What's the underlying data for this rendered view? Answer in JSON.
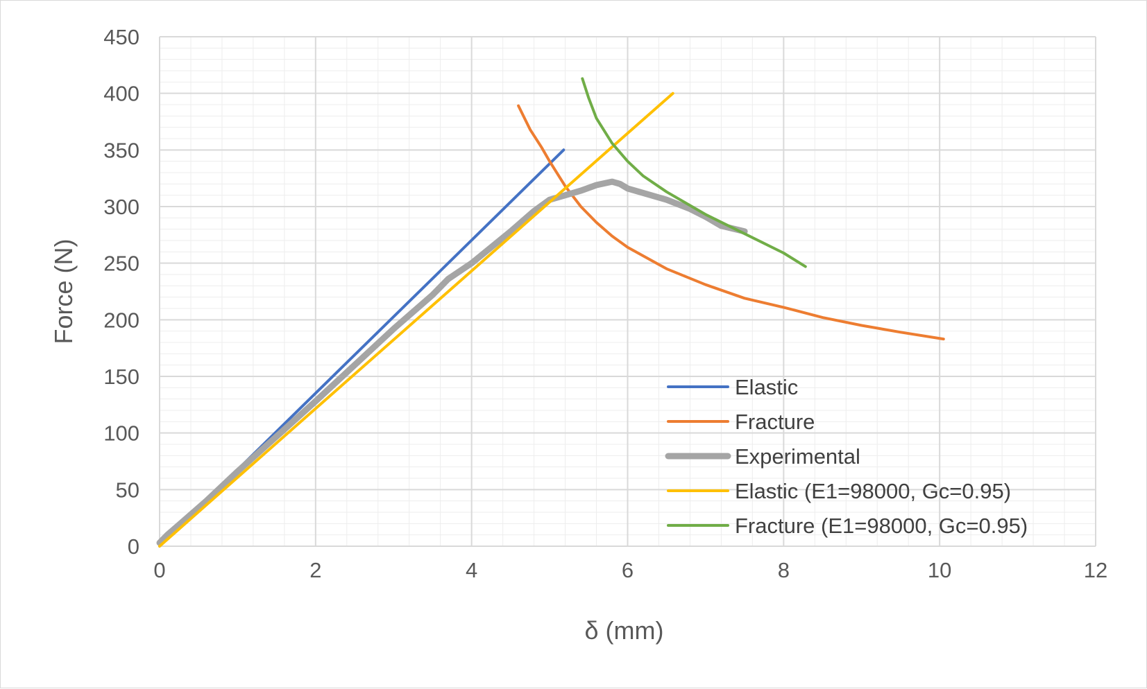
{
  "chart_data": {
    "type": "line",
    "title": "",
    "xlabel": "δ (mm)",
    "ylabel": "Force (N)",
    "xlim": [
      0,
      12
    ],
    "ylim": [
      0,
      450
    ],
    "xticks": [
      0,
      2,
      4,
      6,
      8,
      10,
      12
    ],
    "yticks": [
      0,
      50,
      100,
      150,
      200,
      250,
      300,
      350,
      400,
      450
    ],
    "xtick_labels": [
      "0",
      "2",
      "4",
      "6",
      "8",
      "10",
      "12"
    ],
    "ytick_labels": [
      "0",
      "50",
      "100",
      "150",
      "200",
      "250",
      "300",
      "350",
      "400",
      "450"
    ],
    "x_minor_step": 0.4,
    "y_minor_step": 10,
    "grid": true,
    "legend_position": "bottom-right",
    "series": [
      {
        "name": "Elastic",
        "color": "#4472c4",
        "width": 4,
        "points": [
          [
            0,
            0
          ],
          [
            5.18,
            350
          ]
        ]
      },
      {
        "name": "Fracture",
        "color": "#ed7d31",
        "width": 4,
        "points": [
          [
            4.6,
            389
          ],
          [
            4.75,
            368
          ],
          [
            4.9,
            352
          ],
          [
            5.0,
            340
          ],
          [
            5.2,
            318
          ],
          [
            5.4,
            300
          ],
          [
            5.6,
            286
          ],
          [
            5.8,
            274
          ],
          [
            6.0,
            264
          ],
          [
            6.5,
            245
          ],
          [
            7.0,
            231
          ],
          [
            7.5,
            219
          ],
          [
            8.0,
            211
          ],
          [
            8.5,
            202
          ],
          [
            9.0,
            195
          ],
          [
            9.5,
            189
          ],
          [
            10.05,
            183
          ]
        ]
      },
      {
        "name": "Experimental",
        "color": "#a5a5a5",
        "width": 9,
        "points": [
          [
            0,
            3
          ],
          [
            0.1,
            10
          ],
          [
            0.3,
            22
          ],
          [
            0.6,
            40
          ],
          [
            1.0,
            66
          ],
          [
            1.5,
            97
          ],
          [
            2.0,
            128
          ],
          [
            2.5,
            160
          ],
          [
            3.0,
            192
          ],
          [
            3.5,
            222
          ],
          [
            3.7,
            236
          ],
          [
            4.0,
            250
          ],
          [
            4.5,
            278
          ],
          [
            4.8,
            296
          ],
          [
            5.0,
            306
          ],
          [
            5.2,
            310
          ],
          [
            5.4,
            314
          ],
          [
            5.6,
            319
          ],
          [
            5.8,
            322
          ],
          [
            5.9,
            320
          ],
          [
            6.0,
            316
          ],
          [
            6.2,
            312
          ],
          [
            6.5,
            306
          ],
          [
            6.8,
            298
          ],
          [
            7.0,
            291
          ],
          [
            7.2,
            283
          ],
          [
            7.5,
            278
          ]
        ]
      },
      {
        "name": "Elastic (E1=98000, Gc=0.95)",
        "color": "#ffc000",
        "width": 4,
        "points": [
          [
            0,
            0
          ],
          [
            6.58,
            400
          ]
        ]
      },
      {
        "name": "Fracture (E1=98000, Gc=0.95)",
        "color": "#70ad47",
        "width": 4,
        "points": [
          [
            5.42,
            413
          ],
          [
            5.5,
            396
          ],
          [
            5.6,
            378
          ],
          [
            5.8,
            356
          ],
          [
            6.0,
            340
          ],
          [
            6.2,
            327
          ],
          [
            6.5,
            313
          ],
          [
            7.0,
            293
          ],
          [
            7.5,
            276
          ],
          [
            8.0,
            259
          ],
          [
            8.28,
            247
          ]
        ]
      }
    ]
  }
}
